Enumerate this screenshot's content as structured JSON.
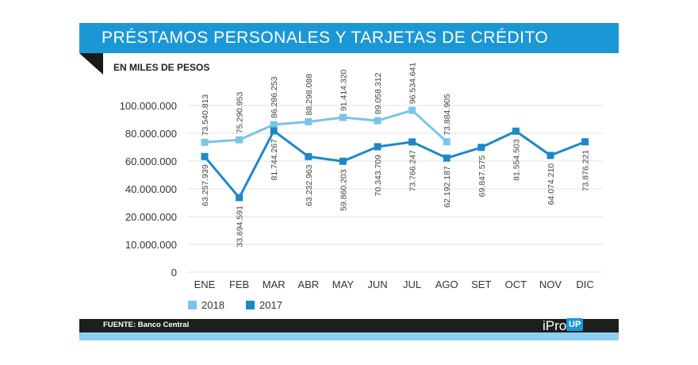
{
  "header": {
    "title": "PRÉSTAMOS PERSONALES Y TARJETAS DE CRÉDITO"
  },
  "colors": {
    "accent": "#1b97d6",
    "light": "#7ac4ea",
    "series_2018": "#7ac4ea",
    "series_2017": "#1e88c7",
    "dark": "#1e1e1e"
  },
  "footer": {
    "source": "FUENTE: Banco Central",
    "logo_main": "iPro",
    "logo_badge": "UP"
  },
  "chart_data": {
    "type": "line",
    "title": "PRÉSTAMOS PERSONALES Y TARJETAS DE CRÉDITO",
    "ylabel": "EN MILES DE PESOS",
    "categories": [
      "ENE",
      "FEB",
      "MAR",
      "ABR",
      "MAY",
      "JUN",
      "JUL",
      "AGO",
      "SET",
      "OCT",
      "NOV",
      "DIC"
    ],
    "y_ticks": [
      0,
      10000000,
      20000000,
      40000000,
      60000000,
      80000000,
      100000000
    ],
    "y_tick_labels": [
      "0",
      "10.000.000",
      "20.000.000",
      "40.000.000",
      "60.000.000",
      "80.000.000",
      "100.000.000"
    ],
    "y_scale_note": "tick spacing is uneven: 0 to 20.000.000 spans two equal intervals",
    "legend_position": "bottom-left",
    "grid": true,
    "series": [
      {
        "name": "2018",
        "values": [
          73540813,
          75290953,
          86286253,
          88298088,
          91414320,
          89058312,
          96534641,
          73884905,
          null,
          null,
          null,
          null
        ],
        "labels": [
          "73.540.813",
          "75.290.953",
          "86.286.253",
          "88.298.088",
          "91.414.320",
          "89.058.312",
          "96.534.641",
          "73.884.905",
          null,
          null,
          null,
          null
        ]
      },
      {
        "name": "2017",
        "values": [
          63257939,
          33694591,
          81744267,
          63232963,
          59860203,
          70343709,
          73766247,
          62192187,
          69847575,
          81554503,
          64074210,
          73876221
        ],
        "labels": [
          "63.257.939",
          "33.694.591",
          "81.744.267",
          "63.232.963",
          "59.860.203",
          "70.343.709",
          "73.766.247",
          "62.192.187",
          "69.847.575",
          "81.554.503",
          "64.074.210",
          "73.876.221"
        ]
      }
    ]
  }
}
